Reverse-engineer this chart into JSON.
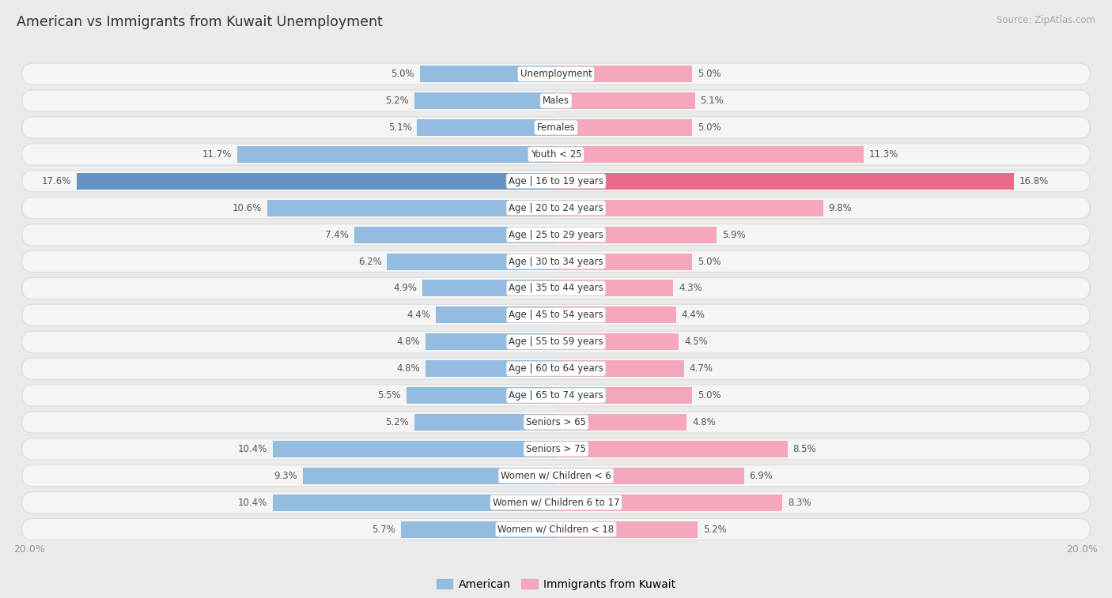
{
  "title": "American vs Immigrants from Kuwait Unemployment",
  "source": "Source: ZipAtlas.com",
  "categories": [
    "Unemployment",
    "Males",
    "Females",
    "Youth < 25",
    "Age | 16 to 19 years",
    "Age | 20 to 24 years",
    "Age | 25 to 29 years",
    "Age | 30 to 34 years",
    "Age | 35 to 44 years",
    "Age | 45 to 54 years",
    "Age | 55 to 59 years",
    "Age | 60 to 64 years",
    "Age | 65 to 74 years",
    "Seniors > 65",
    "Seniors > 75",
    "Women w/ Children < 6",
    "Women w/ Children 6 to 17",
    "Women w/ Children < 18"
  ],
  "american": [
    5.0,
    5.2,
    5.1,
    11.7,
    17.6,
    10.6,
    7.4,
    6.2,
    4.9,
    4.4,
    4.8,
    4.8,
    5.5,
    5.2,
    10.4,
    9.3,
    10.4,
    5.7
  ],
  "kuwait": [
    5.0,
    5.1,
    5.0,
    11.3,
    16.8,
    9.8,
    5.9,
    5.0,
    4.3,
    4.4,
    4.5,
    4.7,
    5.0,
    4.8,
    8.5,
    6.9,
    8.3,
    5.2
  ],
  "american_color": "#92bde0",
  "kuwait_color": "#f5a7bc",
  "american_highlight_color": "#6494c4",
  "kuwait_highlight_color": "#e96b88",
  "bg_color": "#ebebeb",
  "row_bg": "#f5f5f5",
  "row_border": "#dddddd",
  "max_val": 20.0,
  "label_color": "#555555",
  "axis_label_color": "#999999",
  "title_color": "#333333",
  "legend_american": "American",
  "legend_kuwait": "Immigrants from Kuwait"
}
